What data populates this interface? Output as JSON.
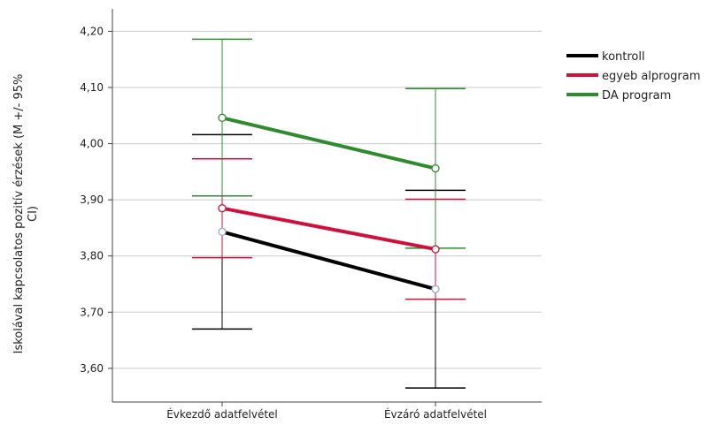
{
  "chart_data": {
    "type": "line",
    "categories": [
      "Évkezdő adatfelvétel",
      "Évzáró adatfelvétel"
    ],
    "ylabel_lines": [
      "Iskolával kapcsolatos pozitív érzések (M +/- 95%",
      "CI)"
    ],
    "ylim": [
      3.54,
      4.24
    ],
    "yticks": [
      3.6,
      3.7,
      3.8,
      3.9,
      4.0,
      4.1,
      4.2
    ],
    "ytick_labels": [
      "3,60",
      "3,70",
      "3,80",
      "3,90",
      "4,00",
      "4,10",
      "4,20"
    ],
    "grid": true,
    "legend_position": "top-right",
    "series": [
      {
        "name": "kontroll",
        "color": "#000000",
        "marker_color": "#8fa9c8",
        "values": [
          3.843,
          3.741
        ],
        "ci_low": [
          3.67,
          3.565
        ],
        "ci_high": [
          4.016,
          3.917
        ]
      },
      {
        "name": "egyeb alprogram",
        "color": "#d0103a",
        "marker_color": "#d0103a",
        "values": [
          3.885,
          3.812
        ],
        "ci_low": [
          3.797,
          3.723
        ],
        "ci_high": [
          3.973,
          3.901
        ]
      },
      {
        "name": "DA program",
        "color": "#2e8b2e",
        "marker_color": "#2e8b2e",
        "values": [
          4.046,
          3.956
        ],
        "ci_low": [
          3.907,
          3.814
        ],
        "ci_high": [
          4.186,
          4.098
        ]
      }
    ]
  }
}
